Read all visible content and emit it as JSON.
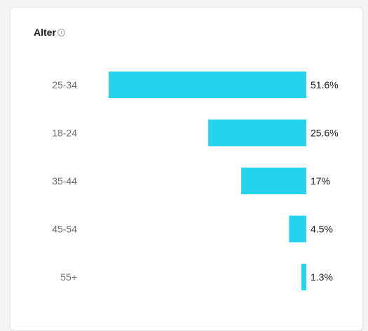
{
  "widget": {
    "title": "Alter",
    "info_icon": "info-circle-icon"
  },
  "colors": {
    "bar": "#25d3ec",
    "card_background": "#ffffff"
  },
  "chart_data": {
    "type": "bar",
    "orientation": "horizontal",
    "categories": [
      "25-34",
      "18-24",
      "35-44",
      "45-54",
      "55+"
    ],
    "values": [
      51.6,
      25.6,
      17,
      4.5,
      1.3
    ],
    "value_labels": [
      "51.6%",
      "25.6%",
      "17%",
      "4.5%",
      "1.3%"
    ],
    "xlim": [
      0,
      51.6
    ]
  }
}
